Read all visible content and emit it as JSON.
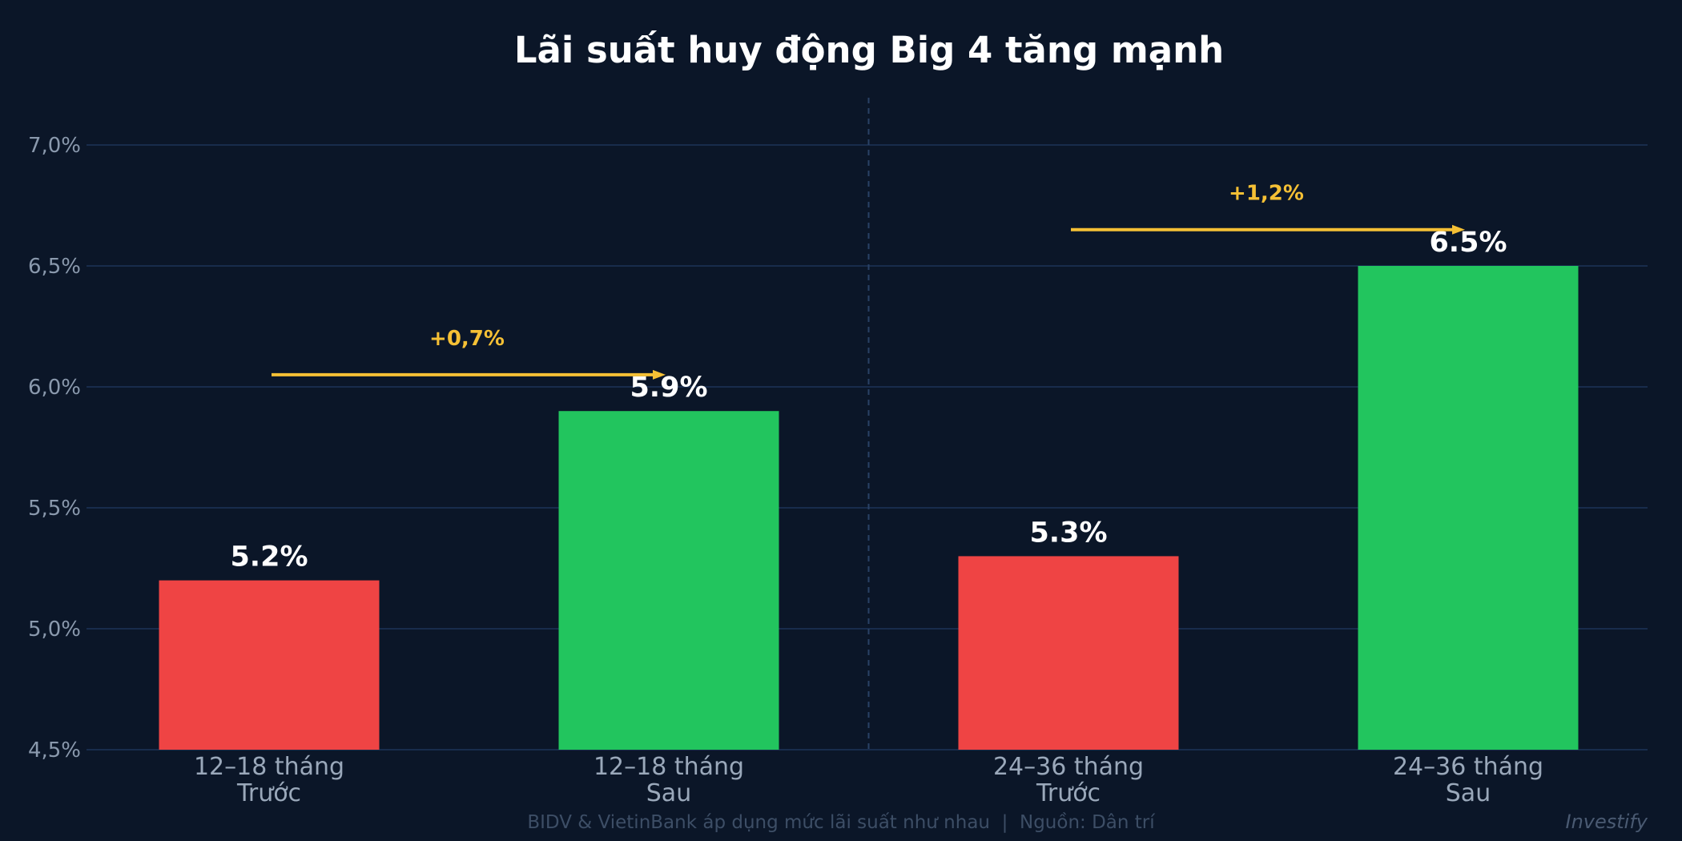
{
  "chart_data": {
    "type": "bar",
    "title": "Lãi suất huy động Big 4 tăng mạnh",
    "xlabel": "",
    "ylabel": "",
    "ylim": [
      4.5,
      7.2
    ],
    "y_ticks": [
      {
        "value": 4.5,
        "label": "4,5%"
      },
      {
        "value": 5.0,
        "label": "5,0%"
      },
      {
        "value": 5.5,
        "label": "5,5%"
      },
      {
        "value": 6.0,
        "label": "6,0%"
      },
      {
        "value": 6.5,
        "label": "6,5%"
      },
      {
        "value": 7.0,
        "label": "7,0%"
      }
    ],
    "grid": true,
    "legend": "none",
    "categories": [
      {
        "line1": "12–18 tháng",
        "line2": "Trước"
      },
      {
        "line1": "12–18 tháng",
        "line2": "Sau"
      },
      {
        "line1": "24–36 tháng",
        "line2": "Trước"
      },
      {
        "line1": "24–36 tháng",
        "line2": "Sau"
      }
    ],
    "values": [
      5.2,
      5.9,
      5.3,
      6.5
    ],
    "value_labels": [
      "5.2%",
      "5.9%",
      "5.3%",
      "6.5%"
    ],
    "bar_colors": [
      "#ef4444",
      "#22c55e",
      "#ef4444",
      "#22c55e"
    ],
    "annotations": [
      {
        "label": "+0,7%",
        "from_index": 0,
        "to_index": 1,
        "y": 6.05
      },
      {
        "label": "+1,2%",
        "from_index": 2,
        "to_index": 3,
        "y": 6.65
      }
    ],
    "group_divider": true
  },
  "footer": {
    "note": "BIDV & VietinBank áp dụng mức lãi suất như nhau  |  Nguồn: Dân trí",
    "brand": "Investify"
  },
  "colors": {
    "background": "#0b1628",
    "grid": "#1c3358",
    "accent": "#f5c035",
    "decrease": "#ef4444",
    "increase": "#22c55e"
  }
}
